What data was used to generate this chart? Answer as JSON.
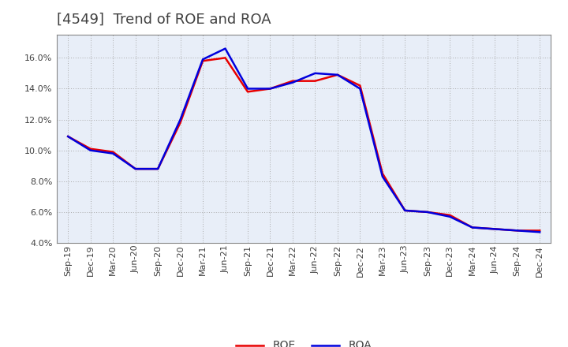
{
  "title": "[4549]  Trend of ROE and ROA",
  "x_labels": [
    "Sep-19",
    "Dec-19",
    "Mar-20",
    "Jun-20",
    "Sep-20",
    "Dec-20",
    "Mar-21",
    "Jun-21",
    "Sep-21",
    "Dec-21",
    "Mar-22",
    "Jun-22",
    "Sep-22",
    "Dec-22",
    "Mar-23",
    "Jun-23",
    "Sep-23",
    "Dec-23",
    "Mar-24",
    "Jun-24",
    "Sep-24",
    "Dec-24"
  ],
  "ROE": [
    10.9,
    10.1,
    9.9,
    8.8,
    8.8,
    11.8,
    15.8,
    16.0,
    13.8,
    14.0,
    14.5,
    14.5,
    14.9,
    14.2,
    8.5,
    6.1,
    6.0,
    5.8,
    5.0,
    4.9,
    4.8,
    4.8
  ],
  "ROA": [
    10.9,
    10.0,
    9.8,
    8.8,
    8.8,
    12.0,
    15.9,
    16.6,
    14.0,
    14.0,
    14.4,
    15.0,
    14.9,
    14.0,
    8.3,
    6.1,
    6.0,
    5.7,
    5.0,
    4.9,
    4.8,
    4.7
  ],
  "ROE_color": "#e80000",
  "ROA_color": "#0000dd",
  "ylim": [
    4.0,
    17.5
  ],
  "yticks": [
    4.0,
    6.0,
    8.0,
    10.0,
    12.0,
    14.0,
    16.0
  ],
  "background_color": "#ffffff",
  "plot_bg_color": "#e8eef8",
  "grid_color": "#aaaaaa",
  "linewidth": 1.8,
  "title_fontsize": 13,
  "legend_fontsize": 10,
  "tick_fontsize": 8,
  "title_color": "#404040"
}
